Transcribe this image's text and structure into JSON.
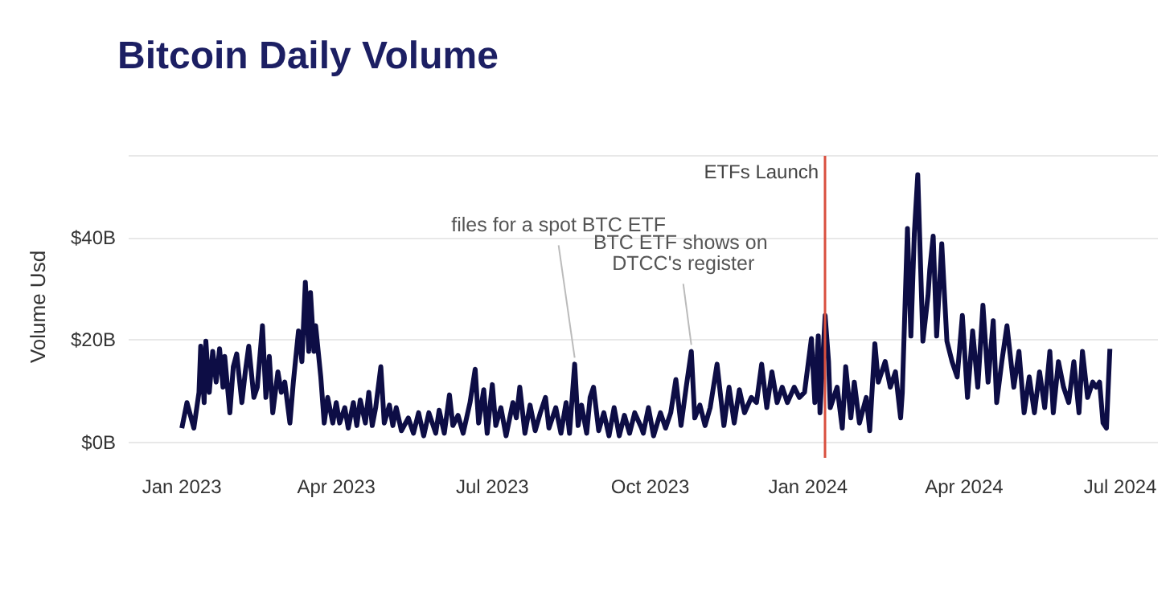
{
  "chart_data": {
    "type": "line",
    "title": "Bitcoin Daily Volume",
    "ylabel": "Volume Usd",
    "x": [
      "2023-01-01",
      "2023-01-04",
      "2023-01-08",
      "2023-01-11",
      "2023-01-12",
      "2023-01-14",
      "2023-01-15",
      "2023-01-17",
      "2023-01-19",
      "2023-01-21",
      "2023-01-23",
      "2023-01-25",
      "2023-01-26",
      "2023-01-29",
      "2023-01-31",
      "2023-02-02",
      "2023-02-05",
      "2023-02-07",
      "2023-02-09",
      "2023-02-12",
      "2023-02-14",
      "2023-02-17",
      "2023-02-19",
      "2023-02-21",
      "2023-02-23",
      "2023-02-26",
      "2023-02-28",
      "2023-03-02",
      "2023-03-05",
      "2023-03-07",
      "2023-03-10",
      "2023-03-12",
      "2023-03-14",
      "2023-03-16",
      "2023-03-17",
      "2023-03-19",
      "2023-03-20",
      "2023-03-23",
      "2023-03-25",
      "2023-03-27",
      "2023-03-30",
      "2023-04-01",
      "2023-04-03",
      "2023-04-06",
      "2023-04-08",
      "2023-04-11",
      "2023-04-13",
      "2023-04-15",
      "2023-04-18",
      "2023-04-20",
      "2023-04-22",
      "2023-04-24",
      "2023-04-27",
      "2023-04-29",
      "2023-05-02",
      "2023-05-04",
      "2023-05-06",
      "2023-05-09",
      "2023-05-13",
      "2023-05-16",
      "2023-05-19",
      "2023-05-22",
      "2023-05-25",
      "2023-05-29",
      "2023-05-31",
      "2023-06-03",
      "2023-06-06",
      "2023-06-08",
      "2023-06-11",
      "2023-06-14",
      "2023-06-18",
      "2023-06-21",
      "2023-06-23",
      "2023-06-26",
      "2023-06-28",
      "2023-07-01",
      "2023-07-03",
      "2023-07-06",
      "2023-07-09",
      "2023-07-13",
      "2023-07-15",
      "2023-07-17",
      "2023-07-20",
      "2023-07-23",
      "2023-07-26",
      "2023-07-29",
      "2023-08-01",
      "2023-08-03",
      "2023-08-07",
      "2023-08-10",
      "2023-08-13",
      "2023-08-15",
      "2023-08-18",
      "2023-08-20",
      "2023-08-22",
      "2023-08-25",
      "2023-08-27",
      "2023-08-29",
      "2023-09-01",
      "2023-09-04",
      "2023-09-07",
      "2023-09-10",
      "2023-09-13",
      "2023-09-16",
      "2023-09-19",
      "2023-09-22",
      "2023-09-26",
      "2023-09-27",
      "2023-09-30",
      "2023-10-03",
      "2023-10-07",
      "2023-10-10",
      "2023-10-13",
      "2023-10-16",
      "2023-10-19",
      "2023-10-22",
      "2023-10-25",
      "2023-10-27",
      "2023-10-30",
      "2023-11-02",
      "2023-11-05",
      "2023-11-09",
      "2023-11-13",
      "2023-11-16",
      "2023-11-19",
      "2023-11-22",
      "2023-11-25",
      "2023-11-29",
      "2023-12-02",
      "2023-12-05",
      "2023-12-08",
      "2023-12-11",
      "2023-12-14",
      "2023-12-17",
      "2023-12-20",
      "2023-12-24",
      "2023-12-27",
      "2023-12-30",
      "2024-01-03",
      "2024-01-05",
      "2024-01-07",
      "2024-01-08",
      "2024-01-11",
      "2024-01-13",
      "2024-01-14",
      "2024-01-18",
      "2024-01-21",
      "2024-01-23",
      "2024-01-26",
      "2024-01-28",
      "2024-01-31",
      "2024-02-04",
      "2024-02-06",
      "2024-02-09",
      "2024-02-11",
      "2024-02-15",
      "2024-02-18",
      "2024-02-21",
      "2024-02-24",
      "2024-02-25",
      "2024-02-28",
      "2024-03-01",
      "2024-03-03",
      "2024-03-05",
      "2024-03-08",
      "2024-03-11",
      "2024-03-12",
      "2024-03-14",
      "2024-03-16",
      "2024-03-19",
      "2024-03-22",
      "2024-03-25",
      "2024-03-28",
      "2024-03-31",
      "2024-04-03",
      "2024-04-06",
      "2024-04-09",
      "2024-04-12",
      "2024-04-15",
      "2024-04-18",
      "2024-04-20",
      "2024-04-23",
      "2024-04-26",
      "2024-04-30",
      "2024-05-03",
      "2024-05-06",
      "2024-05-09",
      "2024-05-12",
      "2024-05-15",
      "2024-05-18",
      "2024-05-21",
      "2024-05-23",
      "2024-05-26",
      "2024-05-29",
      "2024-06-01",
      "2024-06-04",
      "2024-06-07",
      "2024-06-09",
      "2024-06-12",
      "2024-06-15",
      "2024-06-17",
      "2024-06-19",
      "2024-06-21",
      "2024-06-23",
      "2024-06-25"
    ],
    "series": [
      {
        "color": "#0d0d45",
        "values": [
          2.8,
          7.8,
          2.8,
          9.8,
          18.8,
          7.8,
          19.8,
          9.8,
          17.8,
          11.8,
          18.3,
          10.8,
          16.8,
          5.8,
          14.8,
          17.3,
          7.8,
          13.8,
          18.8,
          8.8,
          10.8,
          22.8,
          8.8,
          16.8,
          5.8,
          13.8,
          9.8,
          11.8,
          3.8,
          11.8,
          21.8,
          15.8,
          31.3,
          17.8,
          29.3,
          17.8,
          22.8,
          12.8,
          3.8,
          8.8,
          3.8,
          7.8,
          3.8,
          6.8,
          2.8,
          7.8,
          3.3,
          8.3,
          3.8,
          9.8,
          3.3,
          6.8,
          14.8,
          3.8,
          7.3,
          3.3,
          6.8,
          2.3,
          4.8,
          1.8,
          5.8,
          1.3,
          5.8,
          1.8,
          6.3,
          1.8,
          9.3,
          3.3,
          5.3,
          1.8,
          7.8,
          14.3,
          3.8,
          10.3,
          1.8,
          11.3,
          3.3,
          6.8,
          1.3,
          7.8,
          4.8,
          10.8,
          1.8,
          7.3,
          2.3,
          5.8,
          8.8,
          2.8,
          6.8,
          1.8,
          7.8,
          1.8,
          15.3,
          3.3,
          7.3,
          1.8,
          8.8,
          10.8,
          2.3,
          5.8,
          1.3,
          6.8,
          1.3,
          5.3,
          1.8,
          5.8,
          2.8,
          1.8,
          6.8,
          1.3,
          5.8,
          2.8,
          5.8,
          12.3,
          3.3,
          10.8,
          17.8,
          4.8,
          7.3,
          3.3,
          6.8,
          15.3,
          3.3,
          10.8,
          3.8,
          10.3,
          5.8,
          8.8,
          7.8,
          15.3,
          6.8,
          13.8,
          7.8,
          10.8,
          7.8,
          10.8,
          8.8,
          9.8,
          20.3,
          7.8,
          20.8,
          5.8,
          24.8,
          15.8,
          6.8,
          10.8,
          2.8,
          14.8,
          4.8,
          11.8,
          3.8,
          8.8,
          2.3,
          19.3,
          11.8,
          15.8,
          10.8,
          13.8,
          4.8,
          9.8,
          41.8,
          20.8,
          40.8,
          52.3,
          19.8,
          28.8,
          33.8,
          40.3,
          20.8,
          38.8,
          19.8,
          15.8,
          12.8,
          24.8,
          8.8,
          21.8,
          10.8,
          26.8,
          11.8,
          23.8,
          7.8,
          15.8,
          22.8,
          10.8,
          17.8,
          5.8,
          12.8,
          5.8,
          13.8,
          6.8,
          17.8,
          5.8,
          15.8,
          10.8,
          7.8,
          15.8,
          5.8,
          17.8,
          8.8,
          11.8,
          10.8,
          11.8,
          3.8,
          2.8,
          18.3
        ]
      }
    ],
    "xlim": [
      "2022-12-01",
      "2024-07-23"
    ],
    "xticks": [
      {
        "value": "2023-01-01",
        "label": "Jan 2023"
      },
      {
        "value": "2023-04-01",
        "label": "Apr 2023"
      },
      {
        "value": "2023-07-01",
        "label": "Jul 2023"
      },
      {
        "value": "2023-10-01",
        "label": "Oct 2023"
      },
      {
        "value": "2024-01-01",
        "label": "Jan 2024"
      },
      {
        "value": "2024-04-01",
        "label": "Apr 2024"
      },
      {
        "value": "2024-07-01",
        "label": "Jul 2024"
      }
    ],
    "ylim": [
      -3,
      56
    ],
    "yticks": [
      {
        "value": 0,
        "label": "$0B"
      },
      {
        "value": 20,
        "label": "$20B"
      },
      {
        "value": 40,
        "label": "$40B"
      }
    ],
    "grid": "y",
    "marker": "none",
    "line_style": "solid",
    "ref_lines": [
      {
        "axis": "x",
        "value": "2024-01-11",
        "label": "ETFs Launch",
        "color": "#d9503f"
      }
    ],
    "annotations": [
      {
        "text": "files for a spot BTC ETF",
        "x": "2023-08-18",
        "y": 15.3
      },
      {
        "text": "BTC ETF shows on DTCC's register",
        "x": "2023-10-25",
        "y": 17.8
      }
    ]
  }
}
